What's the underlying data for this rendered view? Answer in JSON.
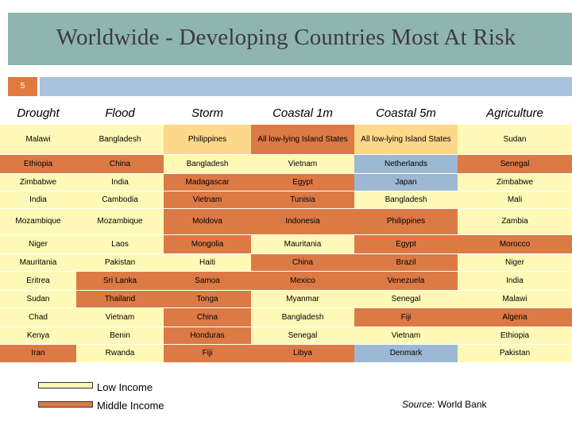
{
  "slide": {
    "title": "Worldwide - Developing Countries Most At Risk",
    "number": "5"
  },
  "colors": {
    "title_bar": "#8fb5b1",
    "low_income": "#fff9b7",
    "middle_income": "#dc7a46",
    "lower_middle_income": "#fcd88a",
    "high_income": "#9db8d2",
    "slide_number_box": "#e07a3f",
    "slide_bar": "#a8c3db"
  },
  "table": {
    "headers": [
      "Drought",
      "Flood",
      "Storm",
      "Coastal 1m",
      "Coastal 5m",
      "Agriculture"
    ],
    "rows": [
      [
        {
          "text": "Malawi",
          "cls": "low"
        },
        {
          "text": "Bangladesh",
          "cls": "low"
        },
        {
          "text": "Philippines",
          "cls": "lowmid"
        },
        {
          "text": "All low-lying Island States",
          "cls": "mid"
        },
        {
          "text": "All low-lying Island States",
          "cls": "lowmid"
        },
        {
          "text": "Sudan",
          "cls": "low"
        }
      ],
      [
        {
          "text": "Ethiopia",
          "cls": "mid"
        },
        {
          "text": "China",
          "cls": "mid"
        },
        {
          "text": "Bangladesh",
          "cls": "low"
        },
        {
          "text": "Vietnam",
          "cls": "low"
        },
        {
          "text": "Netherlands",
          "cls": "high"
        },
        {
          "text": "Senegal",
          "cls": "mid"
        }
      ],
      [
        {
          "text": "Zimbabwe",
          "cls": "low"
        },
        {
          "text": "India",
          "cls": "low"
        },
        {
          "text": "Madagascar",
          "cls": "mid"
        },
        {
          "text": "Egypt",
          "cls": "mid"
        },
        {
          "text": "Japan",
          "cls": "high"
        },
        {
          "text": "Zimbabwe",
          "cls": "low"
        }
      ],
      [
        {
          "text": "India",
          "cls": "low"
        },
        {
          "text": "Cambodia",
          "cls": "low"
        },
        {
          "text": "Vietnam",
          "cls": "mid"
        },
        {
          "text": "Tunisia",
          "cls": "mid"
        },
        {
          "text": "Bangladesh",
          "cls": "low"
        },
        {
          "text": "Mali",
          "cls": "low"
        }
      ],
      [
        {
          "text": "Mozambique",
          "cls": "low"
        },
        {
          "text": "Mozambique",
          "cls": "low"
        },
        {
          "text": "Moldova",
          "cls": "mid"
        },
        {
          "text": "Indonesia",
          "cls": "mid"
        },
        {
          "text": "Philippines",
          "cls": "mid"
        },
        {
          "text": "Zambia",
          "cls": "low"
        }
      ],
      [
        {
          "text": "Niger",
          "cls": "low"
        },
        {
          "text": "Laos",
          "cls": "low"
        },
        {
          "text": "Mongolia",
          "cls": "mid"
        },
        {
          "text": "Mauritania",
          "cls": "low"
        },
        {
          "text": "Egypt",
          "cls": "mid"
        },
        {
          "text": "Morocco",
          "cls": "mid"
        }
      ],
      [
        {
          "text": "Mauritania",
          "cls": "low"
        },
        {
          "text": "Pakistan",
          "cls": "low"
        },
        {
          "text": "Haiti",
          "cls": "low"
        },
        {
          "text": "China",
          "cls": "mid"
        },
        {
          "text": "Brazil",
          "cls": "mid"
        },
        {
          "text": "Niger",
          "cls": "low"
        }
      ],
      [
        {
          "text": "Eritrea",
          "cls": "low"
        },
        {
          "text": "Sri Lanka",
          "cls": "mid"
        },
        {
          "text": "Samoa",
          "cls": "mid"
        },
        {
          "text": "Mexico",
          "cls": "mid"
        },
        {
          "text": "Venezuela",
          "cls": "mid"
        },
        {
          "text": "India",
          "cls": "low"
        }
      ],
      [
        {
          "text": "Sudan",
          "cls": "low"
        },
        {
          "text": "Thailand",
          "cls": "mid"
        },
        {
          "text": "Tonga",
          "cls": "mid"
        },
        {
          "text": "Myanmar",
          "cls": "low"
        },
        {
          "text": "Senegal",
          "cls": "low"
        },
        {
          "text": "Malawi",
          "cls": "low"
        }
      ],
      [
        {
          "text": "Chad",
          "cls": "low"
        },
        {
          "text": "Vietnam",
          "cls": "low"
        },
        {
          "text": "China",
          "cls": "mid"
        },
        {
          "text": "Bangladesh",
          "cls": "low"
        },
        {
          "text": "Fiji",
          "cls": "mid"
        },
        {
          "text": "Algeria",
          "cls": "mid"
        }
      ],
      [
        {
          "text": "Kenya",
          "cls": "low"
        },
        {
          "text": "Benin",
          "cls": "low"
        },
        {
          "text": "Honduras",
          "cls": "mid"
        },
        {
          "text": "Senegal",
          "cls": "low"
        },
        {
          "text": "Vietnam",
          "cls": "low"
        },
        {
          "text": "Ethiopia",
          "cls": "low"
        }
      ],
      [
        {
          "text": "Iran",
          "cls": "mid"
        },
        {
          "text": "Rwanda",
          "cls": "low"
        },
        {
          "text": "Fiji",
          "cls": "mid"
        },
        {
          "text": "Libya",
          "cls": "mid"
        },
        {
          "text": "Denmark",
          "cls": "high"
        },
        {
          "text": "Pakistan",
          "cls": "low"
        }
      ]
    ]
  },
  "legend": {
    "low": "Low Income",
    "middle": "Middle Income"
  },
  "source": {
    "label": "Source:",
    "value": "World Bank"
  }
}
